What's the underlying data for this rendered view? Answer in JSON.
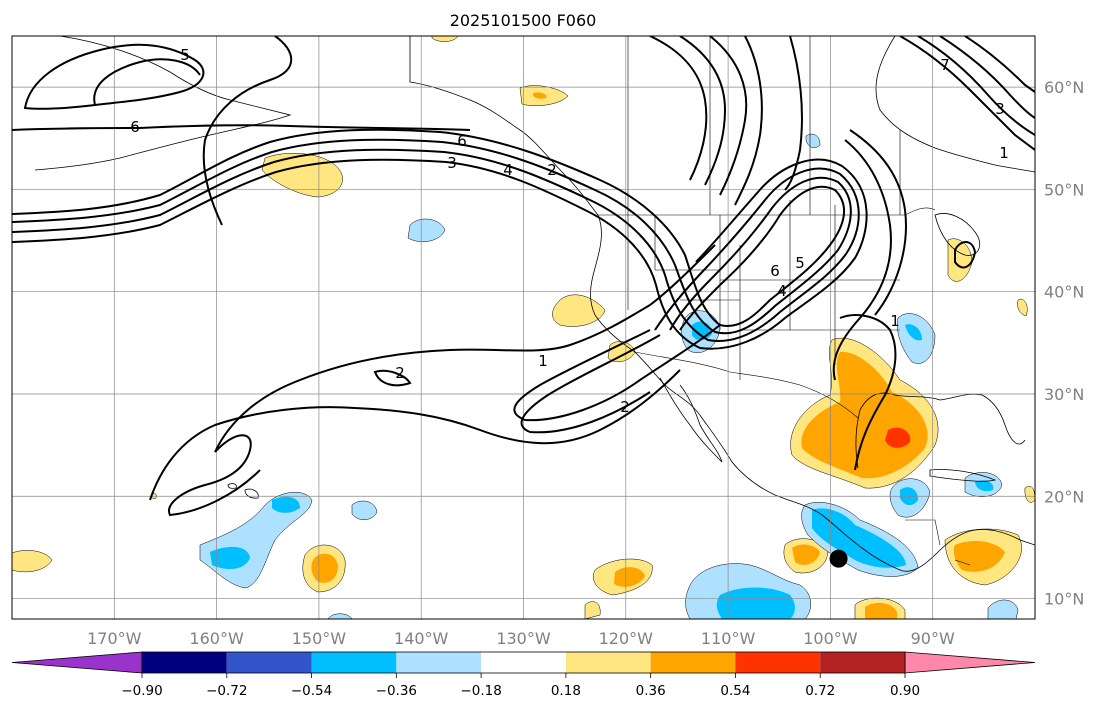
{
  "title": "2025101500 F060",
  "map": {
    "lon_range": [
      -180,
      -80
    ],
    "lat_range": [
      8,
      65
    ],
    "lon_ticks": [
      {
        "value": -170,
        "label": "170°W"
      },
      {
        "value": -160,
        "label": "160°W"
      },
      {
        "value": -150,
        "label": "150°W"
      },
      {
        "value": -140,
        "label": "140°W"
      },
      {
        "value": -130,
        "label": "130°W"
      },
      {
        "value": -120,
        "label": "120°W"
      },
      {
        "value": -110,
        "label": "110°W"
      },
      {
        "value": -100,
        "label": "100°W"
      },
      {
        "value": -90,
        "label": "90°W"
      }
    ],
    "lat_ticks": [
      {
        "value": 10,
        "label": "10°N"
      },
      {
        "value": 20,
        "label": "20°N"
      },
      {
        "value": 30,
        "label": "30°N"
      },
      {
        "value": 40,
        "label": "40°N"
      },
      {
        "value": 50,
        "label": "50°N"
      },
      {
        "value": 60,
        "label": "60°N"
      }
    ],
    "contour_labels": [
      "5",
      "6",
      "6",
      "3",
      "4",
      "2",
      "6",
      "5",
      "4",
      "2",
      "1",
      "2",
      "1",
      "3",
      "1",
      "7"
    ],
    "marker": {
      "name": "storm-center-dot",
      "lon": -99.2,
      "lat": 13.9,
      "color": "#000000"
    }
  },
  "colorbar": {
    "extend": "both",
    "colors": [
      "#9933cc",
      "#000080",
      "#3355cc",
      "#00bfff",
      "#aee1ff",
      "#ffffff",
      "#ffe680",
      "#ffa500",
      "#ff3300",
      "#b22222",
      "#ff88aa"
    ],
    "tick_labels": [
      "−0.90",
      "−0.72",
      "−0.54",
      "−0.36",
      "−0.18",
      "0.18",
      "0.36",
      "0.54",
      "0.72",
      "0.90"
    ]
  }
}
